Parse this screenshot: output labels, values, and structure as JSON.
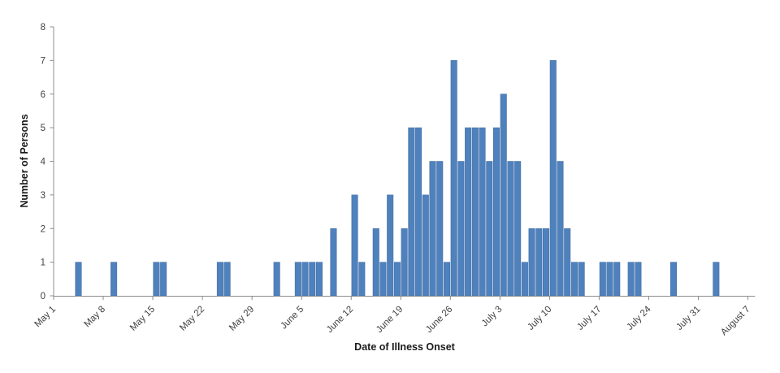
{
  "chart": {
    "xlabel": "Date of Illness Onset",
    "ylabel": "Number of Persons"
  },
  "chart_data": {
    "type": "bar",
    "title": "",
    "xlabel": "Date of Illness Onset",
    "ylabel": "Number of Persons",
    "ylim": [
      0,
      8
    ],
    "grid": false,
    "legend_position": "none",
    "bar_color": "#4f81bd",
    "bar_edge_color": "#3e6aa0",
    "axis_color": "#8c8c8c",
    "tick_text_color": "#404040",
    "title_text_color": "#1a1a1a",
    "y_ticks": [
      0,
      1,
      2,
      3,
      4,
      5,
      6,
      7,
      8
    ],
    "x_tick_labels": [
      "May 1",
      "May 8",
      "May 15",
      "May 22",
      "May 29",
      "June 5",
      "June 12",
      "June 19",
      "June 26",
      "July 3",
      "July 10",
      "July 17",
      "July 24",
      "July 31",
      "August 7"
    ],
    "x_tick_interval_days": 7,
    "categories": [
      "May 1",
      "May 2",
      "May 3",
      "May 4",
      "May 5",
      "May 6",
      "May 7",
      "May 8",
      "May 9",
      "May 10",
      "May 11",
      "May 12",
      "May 13",
      "May 14",
      "May 15",
      "May 16",
      "May 17",
      "May 18",
      "May 19",
      "May 20",
      "May 21",
      "May 22",
      "May 23",
      "May 24",
      "May 25",
      "May 26",
      "May 27",
      "May 28",
      "May 29",
      "May 30",
      "May 31",
      "June 1",
      "June 2",
      "June 3",
      "June 4",
      "June 5",
      "June 6",
      "June 7",
      "June 8",
      "June 9",
      "June 10",
      "June 11",
      "June 12",
      "June 13",
      "June 14",
      "June 15",
      "June 16",
      "June 17",
      "June 18",
      "June 19",
      "June 20",
      "June 21",
      "June 22",
      "June 23",
      "June 24",
      "June 25",
      "June 26",
      "June 27",
      "June 28",
      "June 29",
      "June 30",
      "July 1",
      "July 2",
      "July 3",
      "July 4",
      "July 5",
      "July 6",
      "July 7",
      "July 8",
      "July 9",
      "July 10",
      "July 11",
      "July 12",
      "July 13",
      "July 14",
      "July 15",
      "July 16",
      "July 17",
      "July 18",
      "July 19",
      "July 20",
      "July 21",
      "July 22",
      "July 23",
      "July 24",
      "July 25",
      "July 26",
      "July 27",
      "July 28",
      "July 29",
      "July 30",
      "July 31",
      "August 1",
      "August 2",
      "August 3",
      "August 4",
      "August 5",
      "August 6",
      "August 7"
    ],
    "values": [
      0,
      0,
      0,
      1,
      0,
      0,
      0,
      0,
      1,
      0,
      0,
      0,
      0,
      0,
      1,
      1,
      0,
      0,
      0,
      0,
      0,
      0,
      0,
      1,
      1,
      0,
      0,
      0,
      0,
      0,
      0,
      1,
      0,
      0,
      1,
      1,
      1,
      1,
      0,
      2,
      0,
      0,
      3,
      1,
      0,
      2,
      1,
      3,
      1,
      2,
      5,
      5,
      3,
      4,
      4,
      1,
      7,
      4,
      5,
      5,
      5,
      4,
      5,
      6,
      4,
      4,
      1,
      2,
      2,
      2,
      7,
      4,
      2,
      1,
      1,
      0,
      0,
      1,
      1,
      1,
      0,
      1,
      1,
      0,
      0,
      0,
      0,
      1,
      0,
      0,
      0,
      0,
      0,
      1,
      0,
      0,
      0,
      0,
      0
    ]
  }
}
